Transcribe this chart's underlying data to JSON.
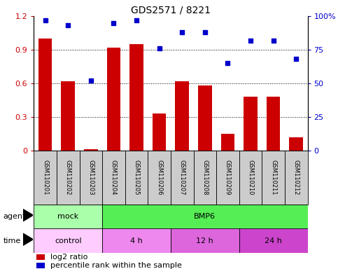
{
  "title": "GDS2571 / 8221",
  "samples": [
    "GSM110201",
    "GSM110202",
    "GSM110203",
    "GSM110204",
    "GSM110205",
    "GSM110206",
    "GSM110207",
    "GSM110208",
    "GSM110209",
    "GSM110210",
    "GSM110211",
    "GSM110212"
  ],
  "log2_ratio": [
    1.0,
    0.62,
    0.01,
    0.92,
    0.95,
    0.33,
    0.62,
    0.58,
    0.15,
    0.48,
    0.48,
    0.12
  ],
  "percentile_rank": [
    97,
    93,
    52,
    95,
    97,
    76,
    88,
    88,
    65,
    82,
    82,
    68
  ],
  "bar_color": "#cc0000",
  "dot_color": "#0000cc",
  "ylim_left": [
    0,
    1.2
  ],
  "ylim_right": [
    0,
    100
  ],
  "yticks_left": [
    0,
    0.3,
    0.6,
    0.9,
    1.2
  ],
  "yticks_right": [
    0,
    25,
    50,
    75,
    100
  ],
  "ytick_labels_left": [
    "0",
    "0.3",
    "0.6",
    "0.9",
    "1.2"
  ],
  "ytick_labels_right": [
    "0",
    "25",
    "50",
    "75",
    "100%"
  ],
  "agent_labels": [
    {
      "text": "mock",
      "start": 0,
      "end": 3,
      "color": "#aaffaa"
    },
    {
      "text": "BMP6",
      "start": 3,
      "end": 12,
      "color": "#55ee55"
    }
  ],
  "time_labels": [
    {
      "text": "control",
      "start": 0,
      "end": 3,
      "color": "#ffccff"
    },
    {
      "text": "4 h",
      "start": 3,
      "end": 6,
      "color": "#ee88ee"
    },
    {
      "text": "12 h",
      "start": 6,
      "end": 9,
      "color": "#dd66dd"
    },
    {
      "text": "24 h",
      "start": 9,
      "end": 12,
      "color": "#cc44cc"
    }
  ],
  "legend_red_label": "log2 ratio",
  "legend_blue_label": "percentile rank within the sample",
  "sample_box_color": "#cccccc"
}
